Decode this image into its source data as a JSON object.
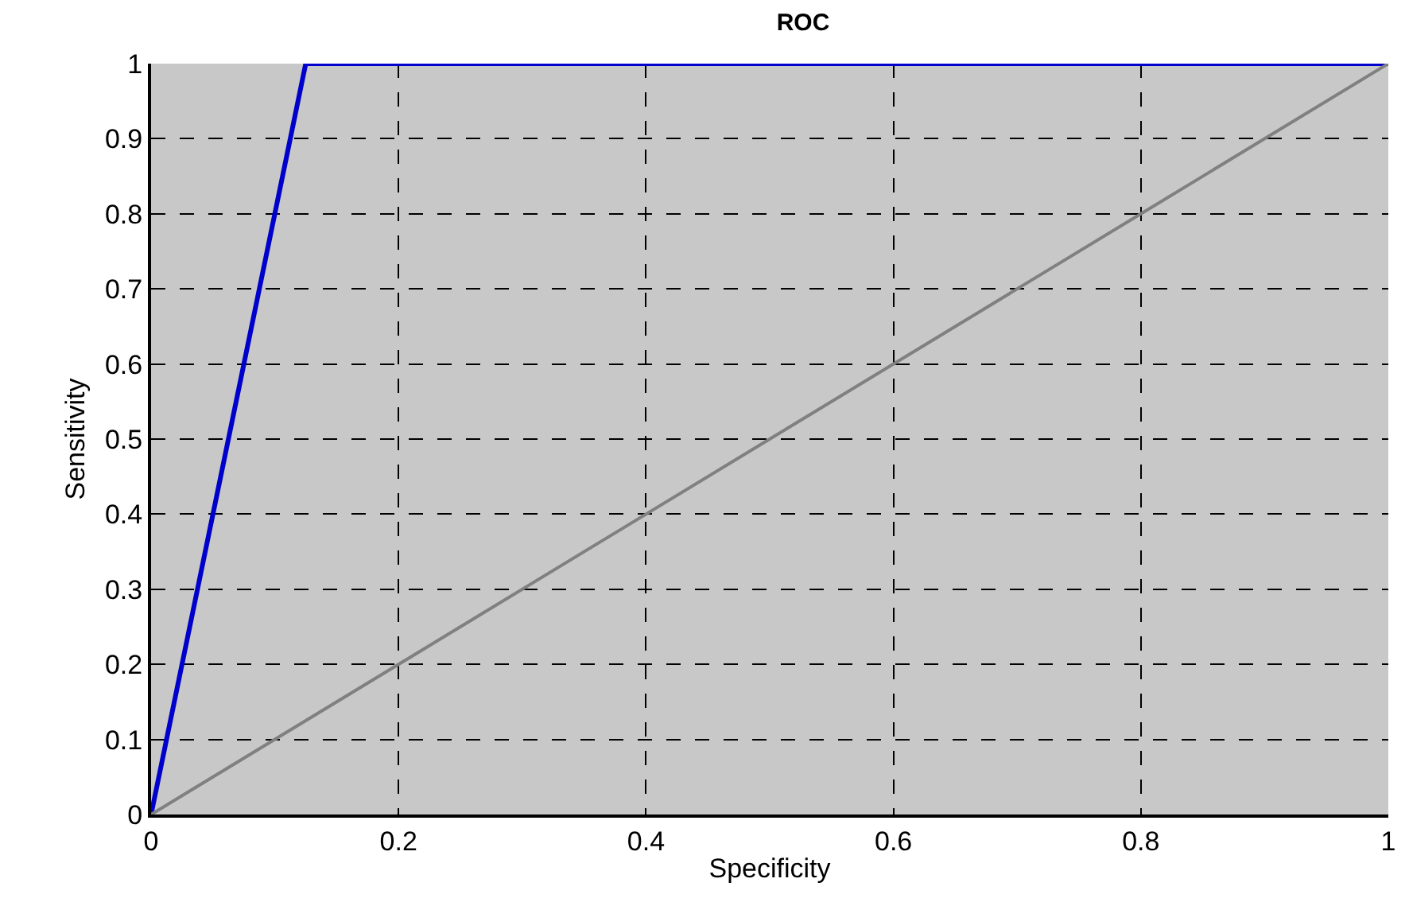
{
  "chart_data": {
    "type": "line",
    "title": "ROC",
    "xlabel": "Specificity",
    "ylabel": "Sensitivity",
    "series": [
      {
        "color": "#0000cc",
        "x": [
          0,
          0.125,
          1
        ],
        "values": [
          0,
          1,
          1
        ]
      },
      {
        "color": "#808080",
        "x": [
          0,
          1
        ],
        "values": [
          0,
          1
        ]
      }
    ],
    "xlim": [
      0,
      1
    ],
    "xticks": [
      0,
      0.2,
      0.4,
      0.6,
      0.8,
      1
    ],
    "ylim": [
      0,
      1
    ],
    "yticks": [
      0,
      0.1,
      0.2,
      0.3,
      0.4,
      0.5,
      0.6,
      0.7,
      0.8,
      0.9,
      1
    ],
    "grid": true,
    "line_style": "solid"
  }
}
